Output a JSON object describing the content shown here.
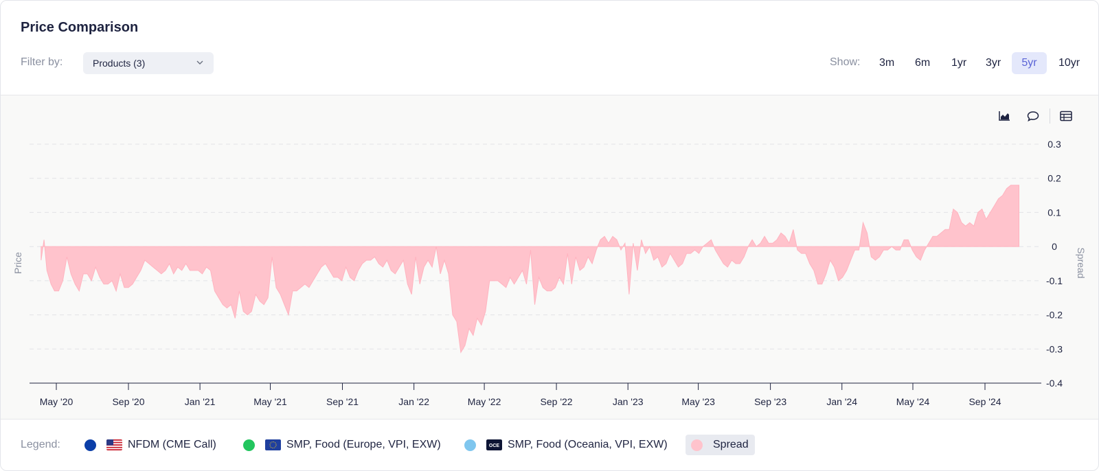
{
  "header": {
    "title": "Price Comparison",
    "filter_label": "Filter by:",
    "filter_value": "Products (3)",
    "show_label": "Show:",
    "ranges": [
      "3m",
      "6m",
      "1yr",
      "3yr",
      "5yr",
      "10yr"
    ],
    "active_range": "5yr"
  },
  "toolbar": {
    "icons": [
      "area-chart-icon",
      "comment-icon",
      "table-icon"
    ]
  },
  "legend": {
    "label": "Legend:",
    "items": [
      {
        "name": "NFDM (CME Call)",
        "color": "#0b3ea8",
        "flag": "us-flag"
      },
      {
        "name": "SMP, Food (Europe, VPI, EXW)",
        "color": "#22c55e",
        "flag": "eu-flag"
      },
      {
        "name": "SMP, Food (Oceania, VPI, EXW)",
        "color": "#7fc6ee",
        "flag": "oce-flag",
        "flag_text": "OCE"
      },
      {
        "name": "Spread",
        "color": "#ffc3cc"
      }
    ]
  },
  "chart_data": {
    "type": "area",
    "xlabel": "",
    "ylabel": "Price",
    "y2label": "Spread",
    "ylim": [
      -0.4,
      0.3
    ],
    "yticks": [
      "0.3",
      "0.2",
      "0.1",
      "0",
      "-0.1",
      "-0.2",
      "-0.3",
      "-0.4"
    ],
    "ytick_values": [
      0.3,
      0.2,
      0.1,
      0,
      -0.1,
      -0.2,
      -0.3,
      -0.4
    ],
    "xticks": [
      "May '20",
      "Sep '20",
      "Jan '21",
      "May '21",
      "Sep '21",
      "Jan '22",
      "May '22",
      "Sep '22",
      "Jan '23",
      "May '23",
      "Sep '23",
      "Jan '24",
      "May '24",
      "Sep '24"
    ],
    "xtick_dates": [
      "2020-05-01",
      "2020-09-01",
      "2021-01-01",
      "2021-05-01",
      "2021-09-01",
      "2022-01-01",
      "2022-05-01",
      "2022-09-01",
      "2023-01-01",
      "2023-05-01",
      "2023-09-01",
      "2024-01-01",
      "2024-05-01",
      "2024-09-01"
    ],
    "grid": true,
    "series": [
      {
        "name": "Spread",
        "color": "#ffc3cc",
        "points": [
          [
            "2020-04-05",
            -0.04
          ],
          [
            "2020-04-10",
            0.02
          ],
          [
            "2020-04-15",
            -0.07
          ],
          [
            "2020-04-22",
            -0.11
          ],
          [
            "2020-04-28",
            -0.13
          ],
          [
            "2020-05-05",
            -0.13
          ],
          [
            "2020-05-12",
            -0.1
          ],
          [
            "2020-05-19",
            -0.03
          ],
          [
            "2020-05-26",
            -0.08
          ],
          [
            "2020-06-02",
            -0.11
          ],
          [
            "2020-06-09",
            -0.13
          ],
          [
            "2020-06-16",
            -0.08
          ],
          [
            "2020-06-23",
            -0.08
          ],
          [
            "2020-06-30",
            -0.1
          ],
          [
            "2020-07-07",
            -0.06
          ],
          [
            "2020-07-14",
            -0.09
          ],
          [
            "2020-07-21",
            -0.11
          ],
          [
            "2020-07-28",
            -0.11
          ],
          [
            "2020-08-04",
            -0.1
          ],
          [
            "2020-08-11",
            -0.13
          ],
          [
            "2020-08-18",
            -0.08
          ],
          [
            "2020-08-25",
            -0.12
          ],
          [
            "2020-09-01",
            -0.12
          ],
          [
            "2020-09-08",
            -0.11
          ],
          [
            "2020-09-15",
            -0.09
          ],
          [
            "2020-09-22",
            -0.07
          ],
          [
            "2020-09-29",
            -0.04
          ],
          [
            "2020-10-06",
            -0.05
          ],
          [
            "2020-10-13",
            -0.06
          ],
          [
            "2020-10-20",
            -0.07
          ],
          [
            "2020-10-27",
            -0.08
          ],
          [
            "2020-11-03",
            -0.07
          ],
          [
            "2020-11-10",
            -0.05
          ],
          [
            "2020-11-17",
            -0.08
          ],
          [
            "2020-11-24",
            -0.06
          ],
          [
            "2020-12-01",
            -0.07
          ],
          [
            "2020-12-08",
            -0.05
          ],
          [
            "2020-12-15",
            -0.07
          ],
          [
            "2020-12-22",
            -0.07
          ],
          [
            "2020-12-29",
            -0.07
          ],
          [
            "2021-01-05",
            -0.08
          ],
          [
            "2021-01-12",
            -0.06
          ],
          [
            "2021-01-19",
            -0.07
          ],
          [
            "2021-01-26",
            -0.13
          ],
          [
            "2021-02-02",
            -0.15
          ],
          [
            "2021-02-09",
            -0.17
          ],
          [
            "2021-02-16",
            -0.18
          ],
          [
            "2021-02-23",
            -0.17
          ],
          [
            "2021-03-02",
            -0.21
          ],
          [
            "2021-03-09",
            -0.13
          ],
          [
            "2021-03-16",
            -0.19
          ],
          [
            "2021-03-23",
            -0.2
          ],
          [
            "2021-03-30",
            -0.19
          ],
          [
            "2021-04-06",
            -0.14
          ],
          [
            "2021-04-13",
            -0.16
          ],
          [
            "2021-04-20",
            -0.17
          ],
          [
            "2021-04-27",
            -0.15
          ],
          [
            "2021-05-04",
            -0.03
          ],
          [
            "2021-05-11",
            -0.12
          ],
          [
            "2021-05-18",
            -0.14
          ],
          [
            "2021-05-25",
            -0.17
          ],
          [
            "2021-06-01",
            -0.2
          ],
          [
            "2021-06-08",
            -0.13
          ],
          [
            "2021-06-15",
            -0.13
          ],
          [
            "2021-06-22",
            -0.12
          ],
          [
            "2021-06-29",
            -0.11
          ],
          [
            "2021-07-06",
            -0.12
          ],
          [
            "2021-07-13",
            -0.1
          ],
          [
            "2021-07-20",
            -0.08
          ],
          [
            "2021-07-27",
            -0.06
          ],
          [
            "2021-08-03",
            -0.05
          ],
          [
            "2021-08-10",
            -0.07
          ],
          [
            "2021-08-17",
            -0.09
          ],
          [
            "2021-08-24",
            -0.09
          ],
          [
            "2021-08-31",
            -0.1
          ],
          [
            "2021-09-07",
            -0.06
          ],
          [
            "2021-09-14",
            -0.09
          ],
          [
            "2021-09-21",
            -0.1
          ],
          [
            "2021-09-28",
            -0.07
          ],
          [
            "2021-10-05",
            -0.05
          ],
          [
            "2021-10-12",
            -0.04
          ],
          [
            "2021-10-19",
            -0.04
          ],
          [
            "2021-10-26",
            -0.03
          ],
          [
            "2021-11-02",
            -0.05
          ],
          [
            "2021-11-09",
            -0.06
          ],
          [
            "2021-11-16",
            -0.04
          ],
          [
            "2021-11-23",
            -0.07
          ],
          [
            "2021-11-30",
            -0.08
          ],
          [
            "2021-12-07",
            -0.06
          ],
          [
            "2021-12-14",
            -0.04
          ],
          [
            "2021-12-21",
            -0.11
          ],
          [
            "2021-12-28",
            -0.14
          ],
          [
            "2022-01-04",
            -0.03
          ],
          [
            "2022-01-11",
            -0.11
          ],
          [
            "2022-01-18",
            -0.06
          ],
          [
            "2022-01-25",
            -0.04
          ],
          [
            "2022-02-01",
            -0.06
          ],
          [
            "2022-02-08",
            0.0
          ],
          [
            "2022-02-15",
            -0.08
          ],
          [
            "2022-02-22",
            -0.04
          ],
          [
            "2022-03-01",
            -0.08
          ],
          [
            "2022-03-08",
            -0.2
          ],
          [
            "2022-03-15",
            -0.22
          ],
          [
            "2022-03-22",
            -0.31
          ],
          [
            "2022-03-29",
            -0.29
          ],
          [
            "2022-04-05",
            -0.24
          ],
          [
            "2022-04-12",
            -0.26
          ],
          [
            "2022-04-19",
            -0.21
          ],
          [
            "2022-04-26",
            -0.23
          ],
          [
            "2022-05-03",
            -0.19
          ],
          [
            "2022-05-10",
            -0.1
          ],
          [
            "2022-05-17",
            -0.1
          ],
          [
            "2022-05-24",
            -0.1
          ],
          [
            "2022-05-31",
            -0.11
          ],
          [
            "2022-06-07",
            -0.12
          ],
          [
            "2022-06-14",
            -0.09
          ],
          [
            "2022-06-21",
            -0.11
          ],
          [
            "2022-06-28",
            -0.09
          ],
          [
            "2022-07-05",
            -0.07
          ],
          [
            "2022-07-12",
            -0.11
          ],
          [
            "2022-07-19",
            -0.01
          ],
          [
            "2022-07-26",
            -0.17
          ],
          [
            "2022-08-02",
            -0.09
          ],
          [
            "2022-08-09",
            -0.12
          ],
          [
            "2022-08-16",
            -0.13
          ],
          [
            "2022-08-23",
            -0.13
          ],
          [
            "2022-08-30",
            -0.12
          ],
          [
            "2022-09-06",
            -0.09
          ],
          [
            "2022-09-13",
            -0.11
          ],
          [
            "2022-09-20",
            -0.02
          ],
          [
            "2022-09-27",
            -0.11
          ],
          [
            "2022-10-04",
            -0.03
          ],
          [
            "2022-10-11",
            -0.07
          ],
          [
            "2022-10-18",
            -0.06
          ],
          [
            "2022-10-25",
            -0.03
          ],
          [
            "2022-11-01",
            -0.05
          ],
          [
            "2022-11-08",
            -0.01
          ],
          [
            "2022-11-15",
            0.02
          ],
          [
            "2022-11-22",
            0.03
          ],
          [
            "2022-11-29",
            0.01
          ],
          [
            "2022-12-06",
            0.03
          ],
          [
            "2022-12-13",
            0.02
          ],
          [
            "2022-12-20",
            -0.01
          ],
          [
            "2022-12-27",
            0.01
          ],
          [
            "2023-01-03",
            -0.14
          ],
          [
            "2023-01-10",
            0.01
          ],
          [
            "2023-01-17",
            -0.07
          ],
          [
            "2023-01-24",
            0.02
          ],
          [
            "2023-01-31",
            -0.02
          ],
          [
            "2023-02-07",
            0.0
          ],
          [
            "2023-02-14",
            -0.04
          ],
          [
            "2023-02-21",
            -0.03
          ],
          [
            "2023-02-28",
            -0.06
          ],
          [
            "2023-03-07",
            -0.05
          ],
          [
            "2023-03-14",
            -0.02
          ],
          [
            "2023-03-21",
            -0.04
          ],
          [
            "2023-03-28",
            -0.06
          ],
          [
            "2023-04-04",
            -0.05
          ],
          [
            "2023-04-11",
            -0.02
          ],
          [
            "2023-04-18",
            -0.02
          ],
          [
            "2023-04-25",
            -0.01
          ],
          [
            "2023-05-02",
            -0.02
          ],
          [
            "2023-05-09",
            0.0
          ],
          [
            "2023-05-16",
            0.01
          ],
          [
            "2023-05-23",
            0.02
          ],
          [
            "2023-05-30",
            -0.01
          ],
          [
            "2023-06-06",
            -0.03
          ],
          [
            "2023-06-13",
            -0.05
          ],
          [
            "2023-06-20",
            -0.06
          ],
          [
            "2023-06-27",
            -0.04
          ],
          [
            "2023-07-04",
            -0.05
          ],
          [
            "2023-07-11",
            -0.05
          ],
          [
            "2023-07-18",
            -0.03
          ],
          [
            "2023-07-25",
            0.0
          ],
          [
            "2023-08-01",
            0.02
          ],
          [
            "2023-08-08",
            0.0
          ],
          [
            "2023-08-15",
            0.01
          ],
          [
            "2023-08-22",
            0.03
          ],
          [
            "2023-08-29",
            0.01
          ],
          [
            "2023-09-05",
            0.01
          ],
          [
            "2023-09-12",
            0.02
          ],
          [
            "2023-09-19",
            0.04
          ],
          [
            "2023-09-26",
            0.03
          ],
          [
            "2023-10-03",
            0.01
          ],
          [
            "2023-10-10",
            0.05
          ],
          [
            "2023-10-17",
            -0.01
          ],
          [
            "2023-10-24",
            -0.02
          ],
          [
            "2023-10-31",
            -0.02
          ],
          [
            "2023-11-07",
            -0.05
          ],
          [
            "2023-11-14",
            -0.07
          ],
          [
            "2023-11-21",
            -0.11
          ],
          [
            "2023-11-28",
            -0.11
          ],
          [
            "2023-12-05",
            -0.08
          ],
          [
            "2023-12-12",
            -0.04
          ],
          [
            "2023-12-19",
            -0.06
          ],
          [
            "2023-12-26",
            -0.1
          ],
          [
            "2024-01-02",
            -0.09
          ],
          [
            "2024-01-09",
            -0.07
          ],
          [
            "2024-01-16",
            -0.04
          ],
          [
            "2024-01-23",
            -0.01
          ],
          [
            "2024-01-30",
            -0.01
          ],
          [
            "2024-02-06",
            0.07
          ],
          [
            "2024-02-13",
            0.04
          ],
          [
            "2024-02-20",
            -0.03
          ],
          [
            "2024-02-27",
            -0.04
          ],
          [
            "2024-03-05",
            -0.03
          ],
          [
            "2024-03-12",
            -0.01
          ],
          [
            "2024-03-19",
            -0.01
          ],
          [
            "2024-03-26",
            0.0
          ],
          [
            "2024-04-02",
            -0.01
          ],
          [
            "2024-04-09",
            -0.01
          ],
          [
            "2024-04-16",
            0.02
          ],
          [
            "2024-04-23",
            0.02
          ],
          [
            "2024-04-30",
            -0.01
          ],
          [
            "2024-05-07",
            -0.03
          ],
          [
            "2024-05-14",
            -0.04
          ],
          [
            "2024-05-21",
            -0.01
          ],
          [
            "2024-05-28",
            0.01
          ],
          [
            "2024-06-04",
            0.03
          ],
          [
            "2024-06-11",
            0.03
          ],
          [
            "2024-06-18",
            0.04
          ],
          [
            "2024-06-25",
            0.05
          ],
          [
            "2024-07-02",
            0.05
          ],
          [
            "2024-07-09",
            0.11
          ],
          [
            "2024-07-16",
            0.1
          ],
          [
            "2024-07-23",
            0.07
          ],
          [
            "2024-07-30",
            0.06
          ],
          [
            "2024-08-06",
            0.07
          ],
          [
            "2024-08-13",
            0.06
          ],
          [
            "2024-08-20",
            0.1
          ],
          [
            "2024-08-27",
            0.11
          ],
          [
            "2024-09-03",
            0.08
          ],
          [
            "2024-09-10",
            0.1
          ],
          [
            "2024-09-17",
            0.12
          ],
          [
            "2024-09-24",
            0.14
          ],
          [
            "2024-10-01",
            0.15
          ],
          [
            "2024-10-08",
            0.17
          ],
          [
            "2024-10-15",
            0.18
          ],
          [
            "2024-10-22",
            0.18
          ],
          [
            "2024-10-29",
            0.18
          ]
        ]
      }
    ]
  }
}
